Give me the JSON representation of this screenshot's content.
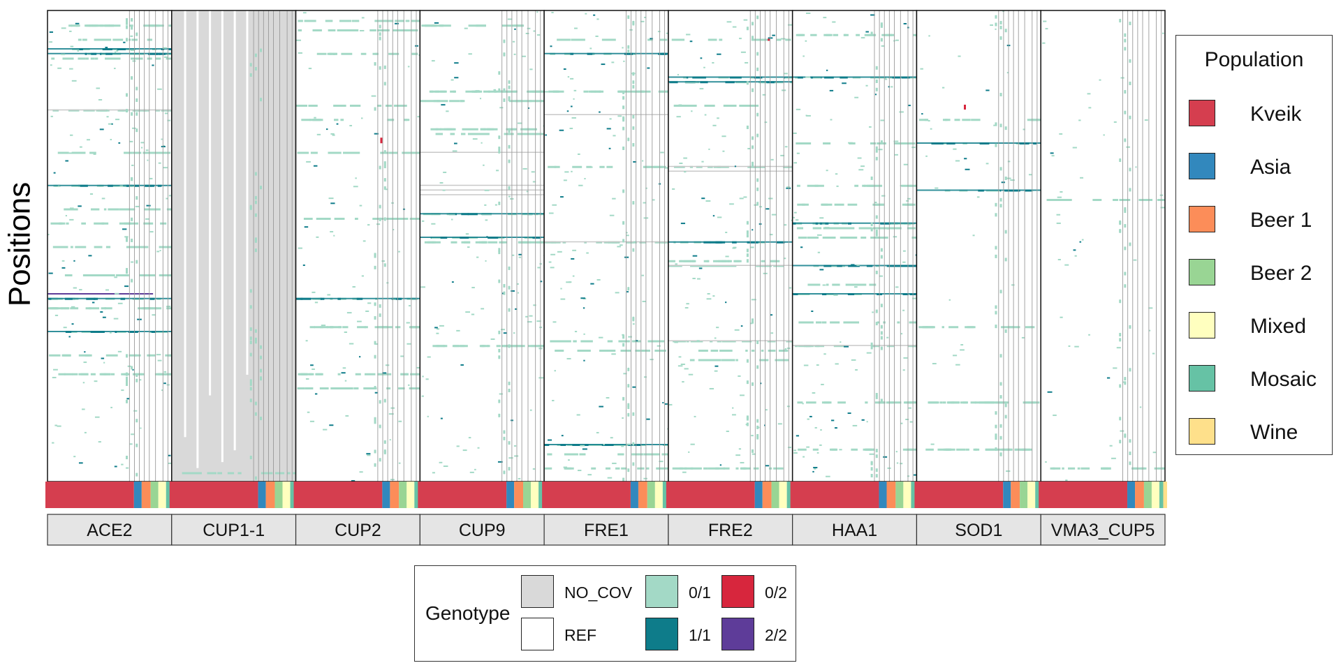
{
  "chart_data": {
    "type": "heatmap",
    "ylabel": "Positions",
    "genes": [
      "ACE2",
      "CUP1-1",
      "CUP2",
      "CUP9",
      "FRE1",
      "FRE2",
      "HAA1",
      "SOD1",
      "VMA3_CUP5"
    ],
    "population_legend": {
      "title": "Population",
      "position": "right",
      "items": [
        {
          "label": "Kveik",
          "color": "#D53E4F"
        },
        {
          "label": "Asia",
          "color": "#3288BD"
        },
        {
          "label": "Beer 1",
          "color": "#FC8D59"
        },
        {
          "label": "Beer 2",
          "color": "#99D594"
        },
        {
          "label": "Mixed",
          "color": "#FFFFBF"
        },
        {
          "label": "Mosaic",
          "color": "#66C2A5"
        },
        {
          "label": "Wine",
          "color": "#FEE08B"
        }
      ]
    },
    "population_bar_proportions": [
      {
        "label": "Kveik",
        "fraction": 0.69
      },
      {
        "label": "Asia",
        "fraction": 0.06
      },
      {
        "label": "Beer 1",
        "fraction": 0.07
      },
      {
        "label": "Beer 2",
        "fraction": 0.06
      },
      {
        "label": "Mixed",
        "fraction": 0.06
      },
      {
        "label": "Mosaic",
        "fraction": 0.03
      },
      {
        "label": "Wine",
        "fraction": 0.03
      }
    ],
    "genotype_legend": {
      "title": "Genotype",
      "position": "bottom",
      "items": [
        {
          "label": "NO_COV",
          "color": "#D9D9D9"
        },
        {
          "label": "REF",
          "color": "#FFFFFF"
        },
        {
          "label": "0/1",
          "color": "#A3D9C6"
        },
        {
          "label": "1/1",
          "color": "#0E7C8A"
        },
        {
          "label": "0/2",
          "color": "#D7263D"
        },
        {
          "label": "2/2",
          "color": "#5E3C99"
        }
      ]
    },
    "variant_rows": [
      {
        "gene": "ACE2",
        "pos": [
          0.03,
          0.06,
          0.08,
          0.09,
          0.1,
          0.21,
          0.3,
          0.37,
          0.42,
          0.45,
          0.5,
          0.56,
          0.61,
          0.63,
          0.68,
          0.73,
          0.77
        ],
        "homalt_rows": [
          0.08,
          0.09,
          0.37,
          0.61,
          0.68,
          0.7
        ],
        "nocov_rows": [
          0.21
        ],
        "purple_rows": [
          0.6
        ],
        "sparsity": 0.55
      },
      {
        "gene": "CUP1-1",
        "pos": [
          0.98
        ],
        "homalt_rows": [
          0.99
        ],
        "nocov_rows": [],
        "purple_rows": [],
        "sparsity": 0.0,
        "nocov_full": true
      },
      {
        "gene": "CUP2",
        "pos": [
          0.02,
          0.04,
          0.09,
          0.2,
          0.23,
          0.3,
          0.44,
          0.61,
          0.67,
          0.77,
          0.8
        ],
        "homalt_rows": [
          0.61
        ],
        "nocov_rows": [],
        "purple_rows": [],
        "sparsity": 0.35
      },
      {
        "gene": "CUP9",
        "pos": [
          0.03,
          0.17,
          0.19,
          0.25,
          0.26,
          0.43,
          0.48,
          0.49,
          0.71
        ],
        "homalt_rows": [
          0.43,
          0.48
        ],
        "nocov_rows": [
          0.37,
          0.38,
          0.39,
          0.3
        ],
        "purple_rows": [],
        "sparsity": 0.45
      },
      {
        "gene": "FRE1",
        "pos": [
          0.06,
          0.09,
          0.17,
          0.33,
          0.49,
          0.7,
          0.72,
          0.92,
          0.94,
          0.97
        ],
        "homalt_rows": [
          0.09,
          0.71,
          0.92
        ],
        "nocov_rows": [
          0.22,
          0.49
        ],
        "purple_rows": [],
        "sparsity": 0.5
      },
      {
        "gene": "FRE2",
        "pos": [
          0.06,
          0.14,
          0.15,
          0.2,
          0.33,
          0.49,
          0.53,
          0.54,
          0.7,
          0.72,
          0.74,
          0.97
        ],
        "homalt_rows": [
          0.14,
          0.15,
          0.49
        ],
        "nocov_rows": [
          0.33,
          0.34,
          0.54,
          0.7
        ],
        "purple_rows": [],
        "sparsity": 0.5
      },
      {
        "gene": "HAA1",
        "pos": [
          0.05,
          0.14,
          0.28,
          0.37,
          0.41,
          0.45,
          0.46,
          0.48,
          0.54,
          0.58,
          0.6,
          0.66,
          0.71,
          0.83,
          0.93
        ],
        "homalt_rows": [
          0.14,
          0.45,
          0.54,
          0.6
        ],
        "nocov_rows": [
          0.71
        ],
        "purple_rows": [],
        "sparsity": 0.5
      },
      {
        "gene": "SOD1",
        "pos": [
          0.23,
          0.28,
          0.38,
          0.67,
          0.83,
          0.93
        ],
        "homalt_rows": [
          0.28,
          0.38
        ],
        "nocov_rows": [],
        "purple_rows": [],
        "sparsity": 0.15
      },
      {
        "gene": "VMA3_CUP5",
        "pos": [
          0.4,
          0.97
        ],
        "homalt_rows": [],
        "nocov_rows": [],
        "purple_rows": [],
        "sparsity": 0.2
      }
    ]
  }
}
